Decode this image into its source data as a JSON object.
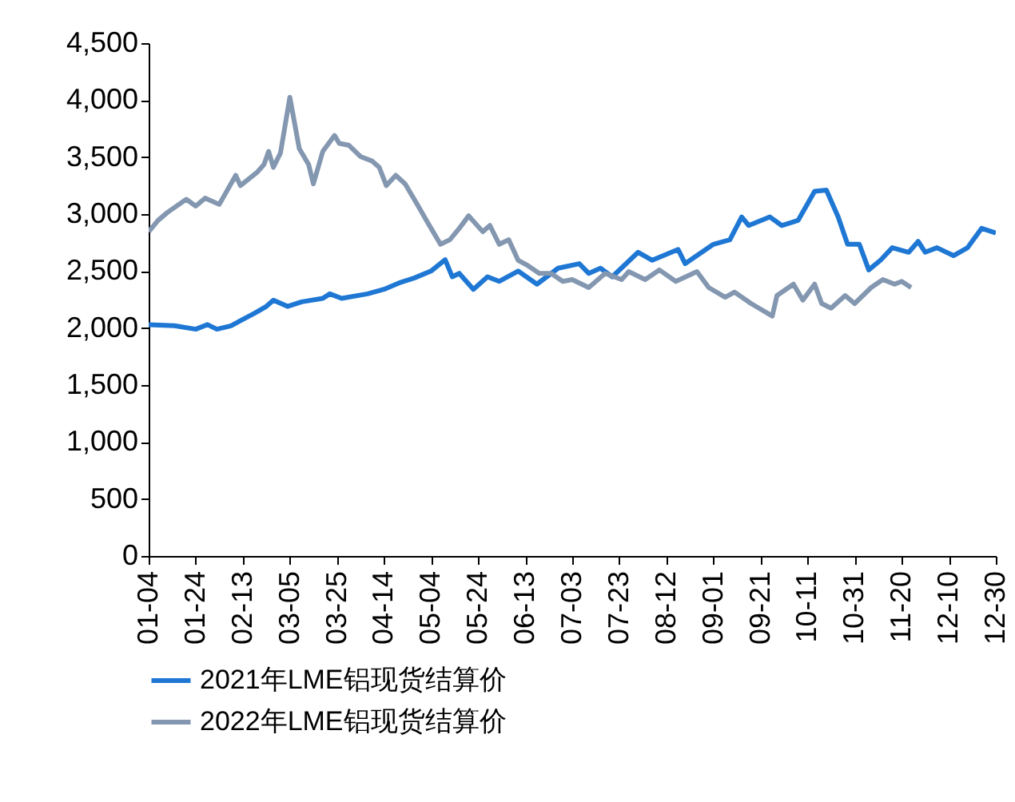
{
  "chart_data": {
    "type": "line",
    "xlim": [
      "--01-04",
      "--12-30"
    ],
    "xticks": [
      {
        "value": "--01-04",
        "label": "01-04"
      },
      {
        "value": "--01-24",
        "label": "01-24"
      },
      {
        "value": "--02-13",
        "label": "02-13"
      },
      {
        "value": "--03-05",
        "label": "03-05"
      },
      {
        "value": "--03-25",
        "label": "03-25"
      },
      {
        "value": "--04-14",
        "label": "04-14"
      },
      {
        "value": "--05-04",
        "label": "05-04"
      },
      {
        "value": "--05-24",
        "label": "05-24"
      },
      {
        "value": "--06-13",
        "label": "06-13"
      },
      {
        "value": "--07-03",
        "label": "07-03"
      },
      {
        "value": "--07-23",
        "label": "07-23"
      },
      {
        "value": "--08-12",
        "label": "08-12"
      },
      {
        "value": "--09-01",
        "label": "09-01"
      },
      {
        "value": "--09-21",
        "label": "09-21"
      },
      {
        "value": "--10-11",
        "label": "10-11"
      },
      {
        "value": "--10-31",
        "label": "10-31"
      },
      {
        "value": "--11-20",
        "label": "11-20"
      },
      {
        "value": "--12-10",
        "label": "12-10"
      },
      {
        "value": "--12-30",
        "label": "12-30"
      }
    ],
    "ylim": [
      0,
      4500
    ],
    "yticks": [
      {
        "value": 0,
        "label": "0"
      },
      {
        "value": 500,
        "label": "500"
      },
      {
        "value": 1000,
        "label": "1,000"
      },
      {
        "value": 1500,
        "label": "1,500"
      },
      {
        "value": 2000,
        "label": "2,000"
      },
      {
        "value": 2500,
        "label": "2,500"
      },
      {
        "value": 3000,
        "label": "3,000"
      },
      {
        "value": 3500,
        "label": "3,500"
      },
      {
        "value": 4000,
        "label": "4,000"
      },
      {
        "value": 4500,
        "label": "4,500"
      }
    ],
    "legend": "bottom",
    "grid": false,
    "series": [
      {
        "name": "2021年LME铝现货结算价",
        "color": "#1f77d4",
        "x": [
          "--01-04",
          "--01-15",
          "--01-24",
          "--01-29",
          "--02-02",
          "--02-08",
          "--02-13",
          "--02-18",
          "--02-23",
          "--02-26",
          "--03-04",
          "--03-10",
          "--03-19",
          "--03-22",
          "--03-27",
          "--04-07",
          "--04-14",
          "--04-21",
          "--04-27",
          "--05-04",
          "--05-10",
          "--05-13",
          "--05-16",
          "--05-22",
          "--05-28",
          "--06-02",
          "--06-10",
          "--06-18",
          "--06-27",
          "--07-06",
          "--07-10",
          "--07-15",
          "--07-20",
          "--07-31",
          "--08-06",
          "--08-17",
          "--08-20",
          "--09-01",
          "--09-08",
          "--09-13",
          "--09-16",
          "--09-25",
          "--09-30",
          "--10-07",
          "--10-14",
          "--10-19",
          "--10-24",
          "--10-28",
          "--11-02",
          "--11-06",
          "--11-11",
          "--11-16",
          "--11-23",
          "--11-27",
          "--11-30",
          "--12-05",
          "--12-12",
          "--12-18",
          "--12-24",
          "--12-30"
        ],
        "values": [
          2030,
          2020,
          1990,
          2030,
          1990,
          2020,
          2075,
          2130,
          2190,
          2245,
          2190,
          2230,
          2260,
          2300,
          2260,
          2300,
          2340,
          2400,
          2440,
          2500,
          2600,
          2450,
          2480,
          2340,
          2450,
          2410,
          2500,
          2385,
          2525,
          2565,
          2480,
          2525,
          2450,
          2665,
          2595,
          2690,
          2565,
          2735,
          2775,
          2975,
          2900,
          2975,
          2900,
          2945,
          3200,
          3210,
          2975,
          2735,
          2735,
          2510,
          2595,
          2705,
          2665,
          2760,
          2665,
          2705,
          2635,
          2705,
          2875,
          2835
        ]
      },
      {
        "name": "2022年LME铝现货结算价",
        "color": "#8497b0",
        "x": [
          "--01-04",
          "--01-08",
          "--01-12",
          "--01-20",
          "--01-24",
          "--01-28",
          "--02-03",
          "--02-10",
          "--02-12",
          "--02-19",
          "--02-22",
          "--02-24",
          "--02-26",
          "--03-01",
          "--03-05",
          "--03-09",
          "--03-13",
          "--03-15",
          "--03-19",
          "--03-24",
          "--03-26",
          "--03-30",
          "--04-04",
          "--04-09",
          "--04-12",
          "--04-15",
          "--04-19",
          "--04-23",
          "--04-29",
          "--05-02",
          "--05-08",
          "--05-12",
          "--05-16",
          "--05-20",
          "--05-26",
          "--05-29",
          "--06-02",
          "--06-06",
          "--06-10",
          "--06-14",
          "--06-19",
          "--06-24",
          "--06-29",
          "--07-03",
          "--07-10",
          "--07-17",
          "--07-24",
          "--07-27",
          "--08-03",
          "--08-09",
          "--08-16",
          "--08-25",
          "--08-30",
          "--09-06",
          "--09-10",
          "--09-17",
          "--09-26",
          "--09-28",
          "--10-05",
          "--10-09",
          "--10-14",
          "--10-17",
          "--10-21",
          "--10-27",
          "--10-31",
          "--11-07",
          "--11-12",
          "--11-17",
          "--11-20",
          "--11-24"
        ],
        "values": [
          2845,
          2945,
          3015,
          3130,
          3070,
          3140,
          3085,
          3340,
          3250,
          3365,
          3435,
          3550,
          3410,
          3535,
          4025,
          3575,
          3435,
          3265,
          3550,
          3690,
          3620,
          3605,
          3505,
          3465,
          3410,
          3250,
          3340,
          3265,
          3055,
          2945,
          2735,
          2775,
          2875,
          2985,
          2845,
          2900,
          2735,
          2775,
          2595,
          2550,
          2480,
          2480,
          2410,
          2425,
          2355,
          2480,
          2425,
          2495,
          2425,
          2510,
          2410,
          2495,
          2355,
          2270,
          2315,
          2215,
          2105,
          2285,
          2385,
          2245,
          2385,
          2215,
          2175,
          2285,
          2215,
          2355,
          2425,
          2385,
          2410,
          2355
        ]
      }
    ]
  }
}
